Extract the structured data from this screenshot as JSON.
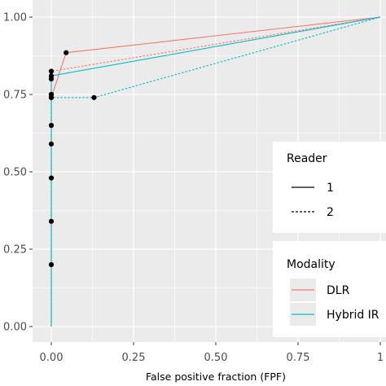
{
  "chart_data": {
    "type": "line",
    "title": "",
    "xlabel": "False positive fraction (FPF)",
    "ylabel": "",
    "xlim": [
      0,
      1
    ],
    "ylim": [
      0,
      1
    ],
    "x_ticks": [
      "0.00",
      "0.25",
      "0.50",
      "0.75",
      "1"
    ],
    "y_ticks": [
      "0.00",
      "0.25",
      "0.50",
      "0.75",
      "1.00"
    ],
    "grid": true,
    "legend_placement": "right",
    "legends": [
      {
        "title": "Reader",
        "entries": [
          {
            "label": "1",
            "linetype": "solid"
          },
          {
            "label": "2",
            "linetype": "dashed"
          }
        ]
      },
      {
        "title": "Modality",
        "entries": [
          {
            "label": "DLR",
            "color": "#F8766D"
          },
          {
            "label": "Hybrid IR",
            "color": "#00BFC4"
          }
        ]
      }
    ],
    "series": [
      {
        "modality": "DLR",
        "reader": "1",
        "color": "#F8766D",
        "dash": false,
        "points": [
          [
            0,
            0
          ],
          [
            0,
            0.2
          ],
          [
            0,
            0.34
          ],
          [
            0,
            0.48
          ],
          [
            0,
            0.59
          ],
          [
            0,
            0.65
          ],
          [
            0,
            0.74
          ],
          [
            0.045,
            0.885
          ],
          [
            1,
            1
          ]
        ],
        "markers": true
      },
      {
        "modality": "DLR",
        "reader": "2",
        "color": "#F8766D",
        "dash": true,
        "points": [
          [
            0,
            0
          ],
          [
            0,
            0.75
          ],
          [
            0,
            0.8
          ],
          [
            0,
            0.825
          ],
          [
            1,
            1
          ]
        ],
        "markers": true
      },
      {
        "modality": "Hybrid IR",
        "reader": "1",
        "color": "#00BFC4",
        "dash": false,
        "points": [
          [
            0,
            0
          ],
          [
            0,
            0.75
          ],
          [
            0,
            0.81
          ],
          [
            1,
            1
          ]
        ],
        "markers": true
      },
      {
        "modality": "Hybrid IR",
        "reader": "2",
        "color": "#00BFC4",
        "dash": true,
        "points": [
          [
            0,
            0
          ],
          [
            0,
            0.74
          ],
          [
            0.13,
            0.74
          ],
          [
            1,
            1
          ]
        ],
        "markers": true
      }
    ]
  }
}
